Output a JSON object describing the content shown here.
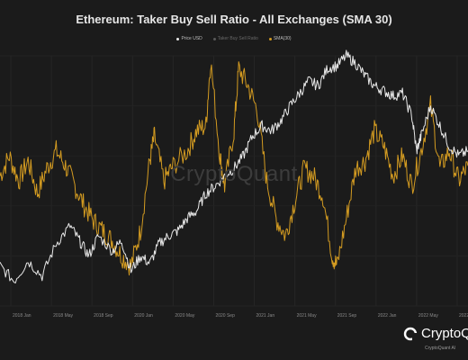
{
  "chart_data": {
    "type": "line",
    "title": "Ethereum: Taker Buy Sell Ratio - All Exchanges (SMA 30)",
    "legend_placement": "top-center",
    "grid": true,
    "x_ticks": [
      "2018 Jan",
      "2018 May",
      "2018 Sep",
      "2020 Jan",
      "2020 May",
      "2020 Sep",
      "2021 Jan",
      "2021 May",
      "2021 Sep",
      "2022 Jan",
      "2022 May",
      "2022 Sep"
    ],
    "series": [
      {
        "name": "Price USD",
        "color": "#e8e8e8",
        "points": [
          [
            0,
            0.16
          ],
          [
            0.03,
            0.1
          ],
          [
            0.06,
            0.18
          ],
          [
            0.09,
            0.12
          ],
          [
            0.12,
            0.25
          ],
          [
            0.15,
            0.32
          ],
          [
            0.17,
            0.26
          ],
          [
            0.19,
            0.2
          ],
          [
            0.21,
            0.28
          ],
          [
            0.24,
            0.22
          ],
          [
            0.26,
            0.26
          ],
          [
            0.28,
            0.14
          ],
          [
            0.3,
            0.2
          ],
          [
            0.32,
            0.17
          ],
          [
            0.34,
            0.25
          ],
          [
            0.36,
            0.28
          ],
          [
            0.38,
            0.3
          ],
          [
            0.4,
            0.35
          ],
          [
            0.42,
            0.38
          ],
          [
            0.44,
            0.45
          ],
          [
            0.46,
            0.48
          ],
          [
            0.48,
            0.52
          ],
          [
            0.5,
            0.55
          ],
          [
            0.52,
            0.6
          ],
          [
            0.54,
            0.68
          ],
          [
            0.56,
            0.72
          ],
          [
            0.58,
            0.7
          ],
          [
            0.6,
            0.74
          ],
          [
            0.62,
            0.8
          ],
          [
            0.64,
            0.85
          ],
          [
            0.66,
            0.9
          ],
          [
            0.68,
            0.88
          ],
          [
            0.7,
            0.95
          ],
          [
            0.72,
            0.96
          ],
          [
            0.74,
            1.0
          ],
          [
            0.76,
            0.97
          ],
          [
            0.78,
            0.92
          ],
          [
            0.8,
            0.88
          ],
          [
            0.82,
            0.86
          ],
          [
            0.84,
            0.84
          ],
          [
            0.86,
            0.85
          ],
          [
            0.88,
            0.76
          ],
          [
            0.89,
            0.62
          ],
          [
            0.9,
            0.68
          ],
          [
            0.92,
            0.8
          ],
          [
            0.94,
            0.72
          ],
          [
            0.96,
            0.64
          ],
          [
            0.98,
            0.6
          ],
          [
            1.0,
            0.62
          ]
        ]
      },
      {
        "name": "Taker Buy Sell Ratio",
        "color": "#595959",
        "points": []
      },
      {
        "name": "SMA(30)",
        "color": "#d39b21",
        "points": [
          [
            0,
            0.52
          ],
          [
            0.02,
            0.6
          ],
          [
            0.04,
            0.5
          ],
          [
            0.06,
            0.58
          ],
          [
            0.08,
            0.45
          ],
          [
            0.1,
            0.55
          ],
          [
            0.12,
            0.62
          ],
          [
            0.14,
            0.56
          ],
          [
            0.16,
            0.48
          ],
          [
            0.18,
            0.4
          ],
          [
            0.2,
            0.34
          ],
          [
            0.22,
            0.3
          ],
          [
            0.24,
            0.26
          ],
          [
            0.26,
            0.2
          ],
          [
            0.28,
            0.16
          ],
          [
            0.3,
            0.3
          ],
          [
            0.32,
            0.58
          ],
          [
            0.33,
            0.68
          ],
          [
            0.35,
            0.5
          ],
          [
            0.37,
            0.56
          ],
          [
            0.4,
            0.62
          ],
          [
            0.42,
            0.7
          ],
          [
            0.44,
            0.72
          ],
          [
            0.45,
            0.98
          ],
          [
            0.47,
            0.6
          ],
          [
            0.48,
            0.48
          ],
          [
            0.5,
            0.7
          ],
          [
            0.51,
            0.95
          ],
          [
            0.53,
            0.88
          ],
          [
            0.55,
            0.78
          ],
          [
            0.57,
            0.5
          ],
          [
            0.59,
            0.35
          ],
          [
            0.61,
            0.28
          ],
          [
            0.63,
            0.42
          ],
          [
            0.65,
            0.55
          ],
          [
            0.67,
            0.52
          ],
          [
            0.69,
            0.44
          ],
          [
            0.71,
            0.2
          ],
          [
            0.72,
            0.16
          ],
          [
            0.74,
            0.35
          ],
          [
            0.76,
            0.55
          ],
          [
            0.78,
            0.58
          ],
          [
            0.8,
            0.7
          ],
          [
            0.82,
            0.64
          ],
          [
            0.84,
            0.52
          ],
          [
            0.86,
            0.6
          ],
          [
            0.88,
            0.48
          ],
          [
            0.9,
            0.62
          ],
          [
            0.92,
            0.8
          ],
          [
            0.94,
            0.55
          ],
          [
            0.96,
            0.62
          ],
          [
            0.98,
            0.5
          ],
          [
            1.0,
            0.56
          ]
        ]
      }
    ]
  },
  "watermark_text": "CryptoQuant",
  "brand": {
    "name": "CryptoQu",
    "sub": "CryptoQuant Al"
  }
}
